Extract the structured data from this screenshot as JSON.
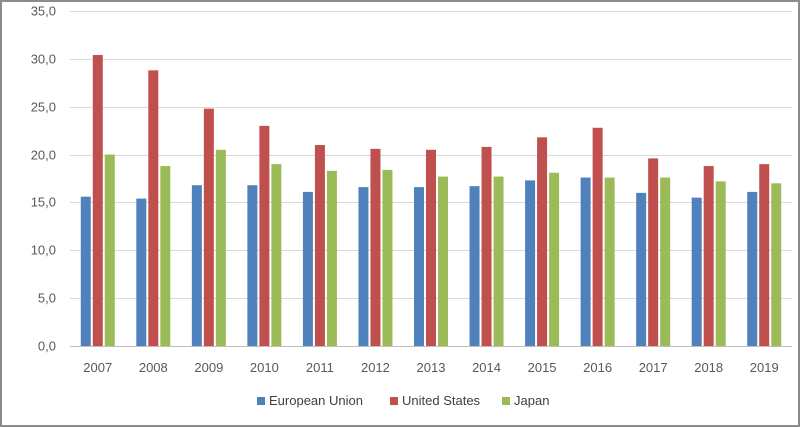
{
  "chart_data": {
    "type": "bar",
    "categories": [
      "2007",
      "2008",
      "2009",
      "2010",
      "2011",
      "2012",
      "2013",
      "2014",
      "2015",
      "2016",
      "2017",
      "2018",
      "2019"
    ],
    "series": [
      {
        "name": "European Union",
        "color": "#4f81bd",
        "values": [
          15.6,
          15.4,
          16.8,
          16.8,
          16.1,
          16.6,
          16.6,
          16.7,
          17.3,
          17.6,
          16.0,
          15.5,
          16.1
        ]
      },
      {
        "name": "United States",
        "color": "#c0504d",
        "values": [
          30.4,
          28.8,
          24.8,
          23.0,
          21.0,
          20.6,
          20.5,
          20.8,
          21.8,
          22.8,
          19.6,
          18.8,
          19.0
        ]
      },
      {
        "name": "Japan",
        "color": "#9bbb59",
        "values": [
          20.0,
          18.8,
          20.5,
          19.0,
          18.3,
          18.4,
          17.7,
          17.7,
          18.1,
          17.6,
          17.6,
          17.2,
          17.0
        ]
      }
    ],
    "y_ticks": [
      "0,0",
      "5,0",
      "10,0",
      "15,0",
      "20,0",
      "25,0",
      "30,0",
      "35,0"
    ],
    "ylim": [
      0,
      35
    ],
    "y_step": 5,
    "grid": true,
    "legend_position": "bottom",
    "title": "",
    "xlabel": "",
    "ylabel": ""
  }
}
